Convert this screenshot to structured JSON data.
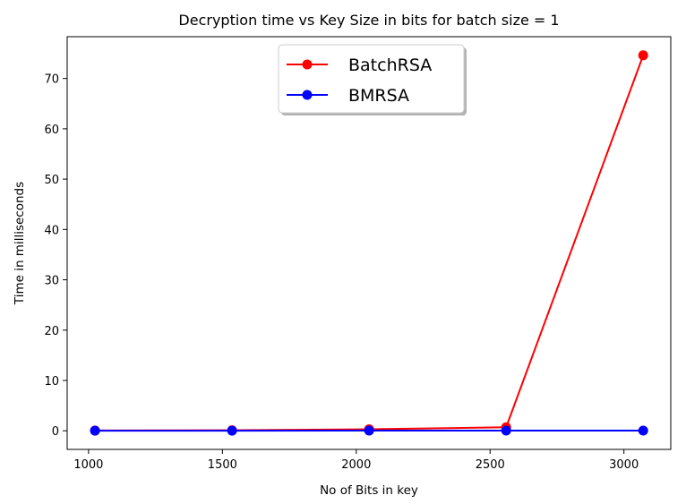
{
  "chart_data": {
    "type": "line",
    "title": "Decryption time vs Key Size in bits for batch size = 1",
    "xlabel": "No of Bits in key",
    "ylabel": "Time in milliseconds",
    "x": [
      1024,
      1536,
      2048,
      2560,
      3072
    ],
    "xlim": [
      920,
      3175
    ],
    "ylim": [
      -3.7,
      78.3
    ],
    "xticks": [
      1000,
      1500,
      2000,
      2500,
      3000
    ],
    "yticks": [
      0,
      10,
      20,
      30,
      40,
      50,
      60,
      70
    ],
    "grid": false,
    "legend_position": "top-center",
    "series": [
      {
        "name": "BatchRSA",
        "color": "#ff0000",
        "values": [
          0.05,
          0.1,
          0.3,
          0.7,
          74.6
        ]
      },
      {
        "name": "BMRSA",
        "color": "#0000ff",
        "values": [
          0.02,
          0.02,
          0.03,
          0.03,
          0.04
        ]
      }
    ]
  }
}
